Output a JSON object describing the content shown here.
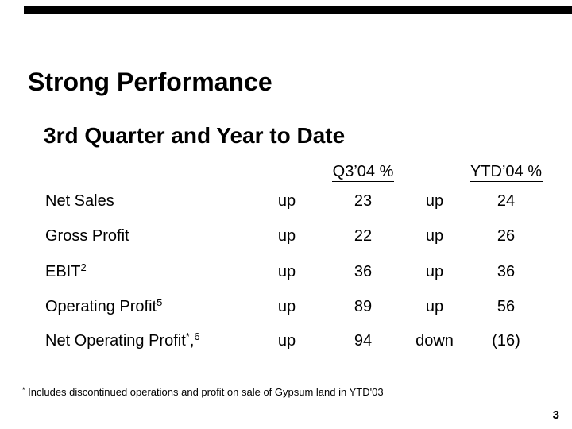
{
  "slide": {
    "title": "Strong Performance",
    "subtitle": "3rd Quarter and Year to Date",
    "page_number": "3",
    "background_color": "#ffffff",
    "text_color": "#000000",
    "accent_bar_color": "#000000"
  },
  "table": {
    "headers": {
      "q3": "Q3’04 %",
      "ytd": "YTD’04 %"
    },
    "rows": [
      {
        "label": "Net Sales",
        "sup1": "",
        "mid": "",
        "sup2": "",
        "dir_q3": "up",
        "val_q3": "23",
        "dir_ytd": "up",
        "val_ytd": "24"
      },
      {
        "label": "Gross Profit",
        "sup1": "",
        "mid": "",
        "sup2": "",
        "dir_q3": "up",
        "val_q3": "22",
        "dir_ytd": "up",
        "val_ytd": "26"
      },
      {
        "label": "EBIT",
        "sup1": "2",
        "mid": "",
        "sup2": "",
        "dir_q3": "up",
        "val_q3": "36",
        "dir_ytd": "up",
        "val_ytd": "36"
      },
      {
        "label": "Operating Profit",
        "sup1": "5",
        "mid": "",
        "sup2": "",
        "dir_q3": "up",
        "val_q3": "89",
        "dir_ytd": "up",
        "val_ytd": "56"
      },
      {
        "label": "Net Operating Profit",
        "sup1": "*",
        "mid": ",",
        "sup2": "6",
        "dir_q3": "up",
        "val_q3": "94",
        "dir_ytd": "down",
        "val_ytd": "(16)"
      }
    ]
  },
  "footnote": {
    "marker": "*",
    "text": "Includes discontinued operations and profit on sale of Gypsum land in YTD'03"
  }
}
